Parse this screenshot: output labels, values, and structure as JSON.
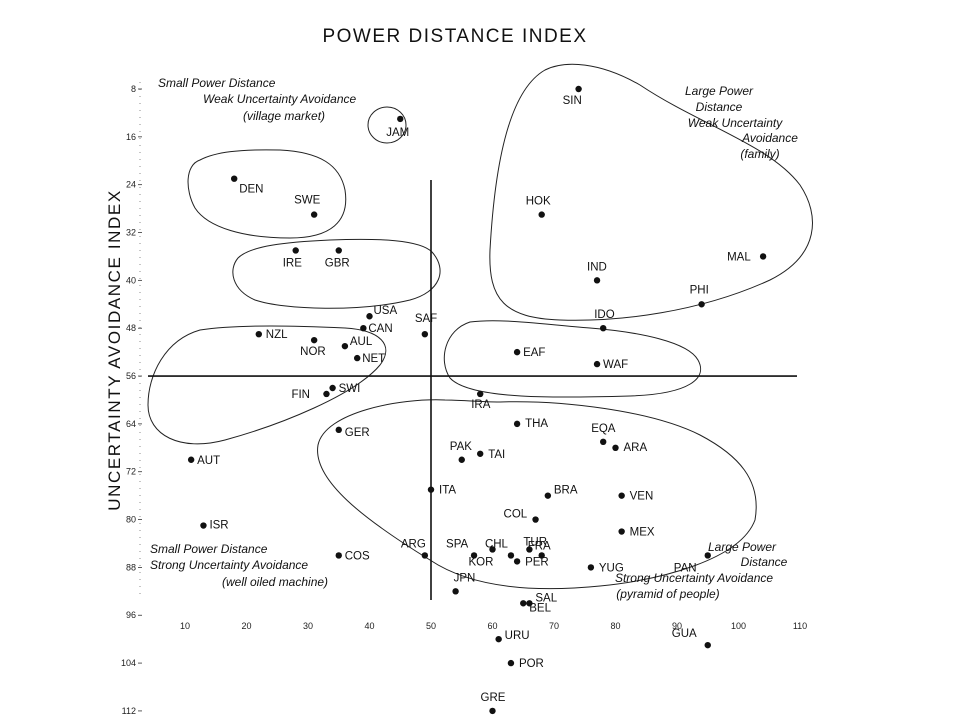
{
  "chart_data": {
    "type": "scatter",
    "title": "POWER DISTANCE INDEX",
    "xlabel": "",
    "ylabel": "UNCERTAINTY AVOIDANCE INDEX",
    "xlim": [
      5,
      113
    ],
    "ylim": [
      5,
      115
    ],
    "x_ticks": [
      "10",
      "20",
      "30",
      "40",
      "50",
      "60",
      "70",
      "80",
      "90",
      "100",
      "110"
    ],
    "y_ticks": [
      "8",
      "16",
      "24",
      "32",
      "40",
      "48",
      "56",
      "64",
      "72",
      "80",
      "88",
      "96",
      "104",
      "112"
    ],
    "reference_lines": {
      "x": 50,
      "y": 56
    },
    "points": [
      {
        "label": "SIN",
        "x": 74,
        "y": 8
      },
      {
        "label": "JAM",
        "x": 45,
        "y": 13
      },
      {
        "label": "DEN",
        "x": 18,
        "y": 23
      },
      {
        "label": "SWE",
        "x": 31,
        "y": 29
      },
      {
        "label": "HOK",
        "x": 68,
        "y": 29
      },
      {
        "label": "IRE",
        "x": 28,
        "y": 35
      },
      {
        "label": "GBR",
        "x": 35,
        "y": 35
      },
      {
        "label": "MAL",
        "x": 104,
        "y": 36
      },
      {
        "label": "IND",
        "x": 77,
        "y": 40
      },
      {
        "label": "PHI",
        "x": 94,
        "y": 44
      },
      {
        "label": "USA",
        "x": 40,
        "y": 46
      },
      {
        "label": "SAF",
        "x": 49,
        "y": 49
      },
      {
        "label": "NZL",
        "x": 22,
        "y": 49
      },
      {
        "label": "CAN",
        "x": 39,
        "y": 48
      },
      {
        "label": "IDO",
        "x": 78,
        "y": 48
      },
      {
        "label": "AUL",
        "x": 36,
        "y": 51
      },
      {
        "label": "NOR",
        "x": 31,
        "y": 50
      },
      {
        "label": "NET",
        "x": 38,
        "y": 53
      },
      {
        "label": "EAF",
        "x": 64,
        "y": 52
      },
      {
        "label": "WAF",
        "x": 77,
        "y": 54
      },
      {
        "label": "FIN",
        "x": 33,
        "y": 59
      },
      {
        "label": "SWI",
        "x": 34,
        "y": 58
      },
      {
        "label": "IRA",
        "x": 58,
        "y": 59
      },
      {
        "label": "GER",
        "x": 35,
        "y": 65
      },
      {
        "label": "THA",
        "x": 64,
        "y": 64
      },
      {
        "label": "PAK",
        "x": 55,
        "y": 70
      },
      {
        "label": "TAI",
        "x": 58,
        "y": 69
      },
      {
        "label": "EQA",
        "x": 78,
        "y": 67
      },
      {
        "label": "ARA",
        "x": 80,
        "y": 68
      },
      {
        "label": "AUT",
        "x": 11,
        "y": 70
      },
      {
        "label": "ITA",
        "x": 50,
        "y": 75
      },
      {
        "label": "BRA",
        "x": 69,
        "y": 76
      },
      {
        "label": "VEN",
        "x": 81,
        "y": 76
      },
      {
        "label": "COL",
        "x": 67,
        "y": 80
      },
      {
        "label": "ISR",
        "x": 13,
        "y": 81
      },
      {
        "label": "ARG",
        "x": 49,
        "y": 86
      },
      {
        "label": "MEX",
        "x": 81,
        "y": 82
      },
      {
        "label": "SPA",
        "x": 57,
        "y": 86
      },
      {
        "label": "CHL",
        "x": 63,
        "y": 86
      },
      {
        "label": "TUR",
        "x": 66,
        "y": 85
      },
      {
        "label": "COS",
        "x": 35,
        "y": 86
      },
      {
        "label": "KOR",
        "x": 60,
        "y": 85
      },
      {
        "label": "FRA",
        "x": 68,
        "y": 86
      },
      {
        "label": "PER",
        "x": 64,
        "y": 87
      },
      {
        "label": "YUG",
        "x": 76,
        "y": 88
      },
      {
        "label": "PAN",
        "x": 95,
        "y": 86
      },
      {
        "label": "JPN",
        "x": 54,
        "y": 92
      },
      {
        "label": "SAL",
        "x": 66,
        "y": 94
      },
      {
        "label": "BEL",
        "x": 65,
        "y": 94
      },
      {
        "label": "URU",
        "x": 61,
        "y": 100
      },
      {
        "label": "GUA",
        "x": 95,
        "y": 101
      },
      {
        "label": "POR",
        "x": 63,
        "y": 104
      },
      {
        "label": "GRE",
        "x": 60,
        "y": 112
      }
    ],
    "annotations": [
      "Small Power Distance",
      "Weak Uncertainty Avoidance",
      "(village market)",
      "Large Power",
      "Distance",
      "Weak Uncertainty",
      "Avoidance",
      "(family)",
      "Small Power Distance",
      "Strong Uncertainty Avoidance",
      "(well oiled machine)",
      "Large Power",
      "Distance",
      "Strong Uncertainty Avoidance",
      "(pyramid of people)"
    ],
    "grid": false,
    "legend": "none"
  }
}
